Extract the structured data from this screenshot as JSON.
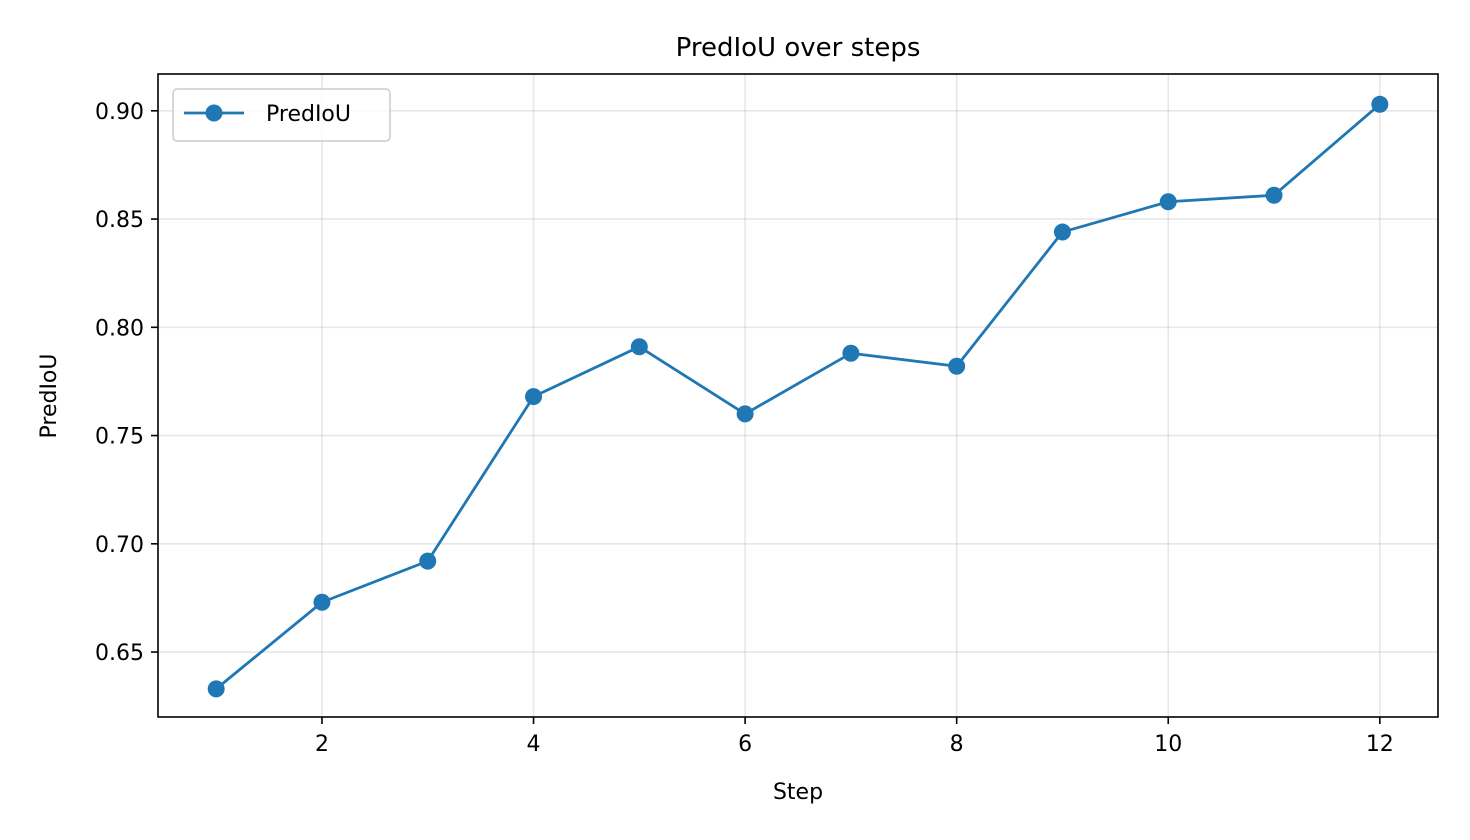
{
  "chart_data": {
    "type": "line",
    "title": "PredIoU over steps",
    "xlabel": "Step",
    "ylabel": "PredIoU",
    "x": [
      1,
      2,
      3,
      4,
      5,
      6,
      7,
      8,
      9,
      10,
      11,
      12
    ],
    "series": [
      {
        "name": "PredIoU",
        "color": "#1f77b4",
        "values": [
          0.633,
          0.673,
          0.692,
          0.768,
          0.791,
          0.76,
          0.788,
          0.782,
          0.844,
          0.858,
          0.861,
          0.903
        ]
      }
    ],
    "xlim": [
      0.45,
      12.55
    ],
    "ylim": [
      0.62,
      0.917
    ],
    "xticks": [
      2,
      4,
      6,
      8,
      10,
      12
    ],
    "xtick_labels": [
      "2",
      "4",
      "6",
      "8",
      "10",
      "12"
    ],
    "yticks": [
      0.65,
      0.7,
      0.75,
      0.8,
      0.85,
      0.9
    ],
    "ytick_labels": [
      "0.65",
      "0.70",
      "0.75",
      "0.80",
      "0.85",
      "0.90"
    ],
    "grid": true,
    "legend_position": "top-left"
  }
}
